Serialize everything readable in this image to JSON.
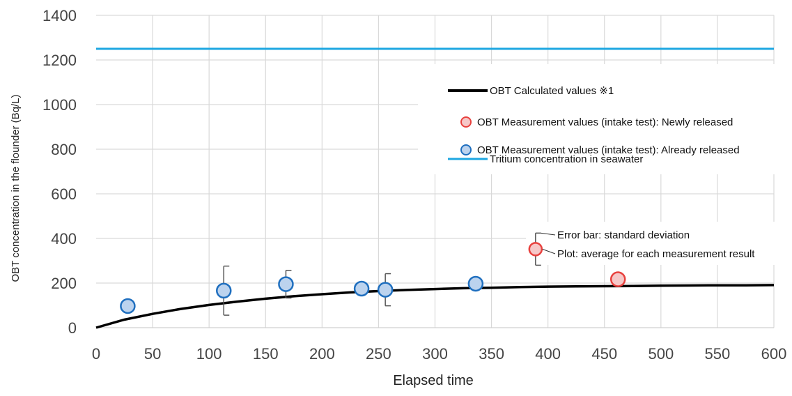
{
  "chart_data": {
    "type": "scatter",
    "xlabel": "Elapsed time",
    "ylabel": "OBT concentration in the flounder (Bq/L)",
    "xlim": [
      0,
      600
    ],
    "ylim": [
      0,
      1400
    ],
    "x_ticks": [
      0,
      50,
      100,
      150,
      200,
      250,
      300,
      350,
      400,
      450,
      500,
      550,
      600
    ],
    "y_ticks": [
      0,
      200,
      400,
      600,
      800,
      1000,
      1200,
      1400
    ],
    "grid": true,
    "legend_position": "top-right",
    "series": [
      {
        "name": "OBT Calculated values ※1",
        "kind": "line",
        "color": "#000000",
        "x": [
          0,
          25,
          50,
          75,
          100,
          125,
          150,
          175,
          200,
          225,
          250,
          275,
          300,
          325,
          350,
          375,
          400,
          425,
          450,
          475,
          500,
          525,
          550,
          575,
          600
        ],
        "y": [
          0,
          36,
          62,
          84,
          102,
          117,
          130,
          141,
          150,
          158,
          164,
          169,
          173,
          177,
          179,
          182,
          184,
          185,
          186,
          187,
          188,
          189,
          190,
          190,
          191
        ]
      },
      {
        "name": "OBT Measurement values (intake test): Newly released",
        "kind": "points",
        "fill": "#f6c8c8",
        "stroke": "#e8413e",
        "points": [
          {
            "x": 462,
            "y": 217
          }
        ]
      },
      {
        "name": "OBT Measurement values (intake test): Already released",
        "kind": "points",
        "fill": "#bcd3ee",
        "stroke": "#1f6fbf",
        "points": [
          {
            "x": 28,
            "y": 97
          },
          {
            "x": 113,
            "y": 166,
            "err": 110
          },
          {
            "x": 168,
            "y": 195,
            "err": 62
          },
          {
            "x": 235,
            "y": 175
          },
          {
            "x": 256,
            "y": 170,
            "err": 72
          },
          {
            "x": 336,
            "y": 197
          }
        ]
      },
      {
        "name": "Tritium concentration in seawater",
        "kind": "hline",
        "color": "#1ea7e1",
        "y": 1250
      }
    ],
    "annotation": {
      "x": 389,
      "y": 352,
      "err": 72,
      "fill": "#f6c8c8",
      "stroke": "#e8413e",
      "errorbar_label": "Error bar: standard deviation",
      "plot_label": "Plot: average for each measurement result"
    }
  }
}
